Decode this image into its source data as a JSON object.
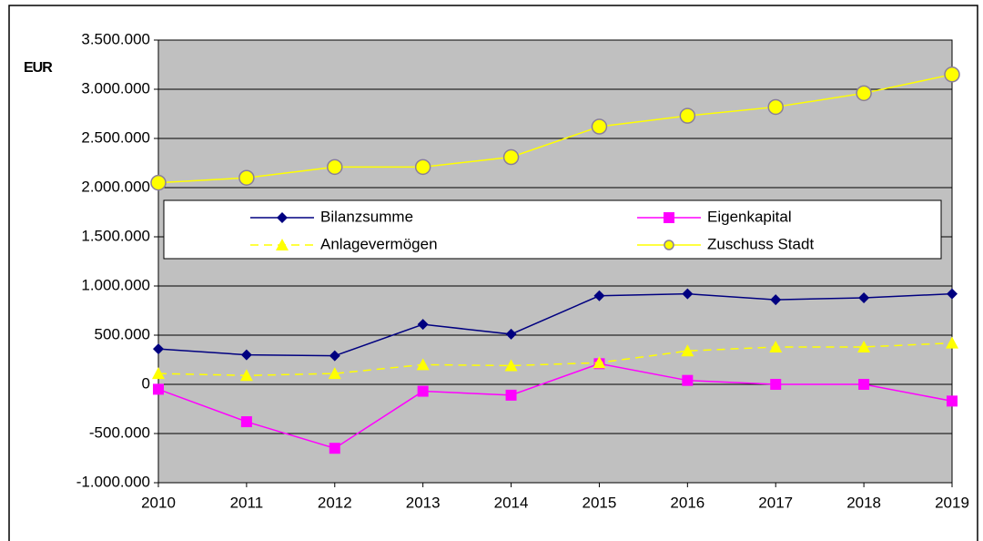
{
  "chart_data": {
    "type": "line",
    "y_label": "EUR",
    "categories": [
      "2010",
      "2011",
      "2012",
      "2013",
      "2014",
      "2015",
      "2016",
      "2017",
      "2018",
      "2019"
    ],
    "series": [
      {
        "name": "Bilanzsumme",
        "color": "#000080",
        "marker": "diamond",
        "values": [
          360000,
          300000,
          290000,
          610000,
          510000,
          900000,
          920000,
          860000,
          880000,
          920000
        ]
      },
      {
        "name": "Eigenkapital",
        "color": "#ff00ff",
        "marker": "square",
        "values": [
          -50000,
          -380000,
          -650000,
          -70000,
          -110000,
          210000,
          40000,
          0,
          0,
          -170000
        ]
      },
      {
        "name": "Anlagevermögen",
        "color": "#ffff00",
        "marker": "triangle",
        "dashed": true,
        "values": [
          110000,
          90000,
          110000,
          200000,
          190000,
          220000,
          340000,
          380000,
          380000,
          420000
        ]
      },
      {
        "name": "Zuschuss Stadt",
        "color": "#ffff00",
        "marker": "circle",
        "values": [
          2050000,
          2100000,
          2210000,
          2210000,
          2310000,
          2620000,
          2730000,
          2820000,
          2960000,
          3150000
        ]
      }
    ],
    "ylim": [
      -1000000,
      3500000
    ],
    "yticks": [
      {
        "value": -1000000,
        "label": "-1.000.000"
      },
      {
        "value": -500000,
        "label": "-500.000"
      },
      0,
      {
        "value": 500000,
        "label": "500.000"
      },
      {
        "value": 1000000,
        "label": "1.000.000"
      },
      {
        "value": 1500000,
        "label": "1.500.000"
      },
      {
        "value": 2000000,
        "label": "2.000.000"
      },
      {
        "value": 2500000,
        "label": "2.500.000"
      },
      {
        "value": 3000000,
        "label": "3.000.000"
      },
      {
        "value": 3500000,
        "label": "3.500.000"
      }
    ],
    "grid": true,
    "plot_background": "#c0c0c0"
  }
}
